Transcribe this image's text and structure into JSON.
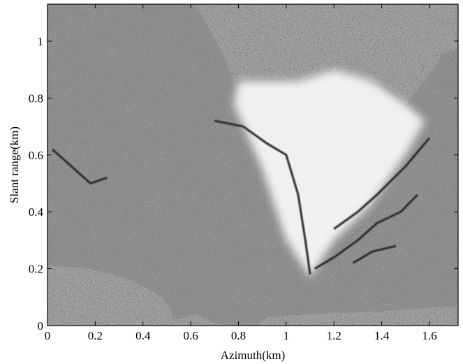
{
  "chart_data": {
    "type": "heatmap",
    "title": "",
    "xlabel": "Azimuth(km)",
    "ylabel": "Slant range(km)",
    "xlim": [
      0,
      1.72
    ],
    "ylim": [
      0,
      1.13
    ],
    "x_ticks": [
      0,
      0.2,
      0.4,
      0.6,
      0.8,
      1,
      1.2,
      1.4,
      1.6
    ],
    "x_tick_labels": [
      "0",
      "0.2",
      "0.4",
      "0.6",
      "0.8",
      "1",
      "1.2",
      "1.4",
      "1.6"
    ],
    "y_ticks": [
      0,
      0.2,
      0.4,
      0.6,
      0.8,
      1
    ],
    "y_tick_labels": [
      "0",
      "0.2",
      "0.4",
      "0.6",
      "0.8",
      "1"
    ],
    "grid": false,
    "colormap": "grayscale",
    "background_color": "#7d7d7d",
    "image_extent_boundary": {
      "top_edge": [
        [
          0,
          1.13
        ],
        [
          0.62,
          1.13
        ],
        [
          0.72,
          0.98
        ],
        [
          0.78,
          0.86
        ],
        [
          0.95,
          0.87
        ],
        [
          1.05,
          0.86
        ],
        [
          1.18,
          0.9
        ],
        [
          1.28,
          0.86
        ],
        [
          1.36,
          0.86
        ],
        [
          1.45,
          0.83
        ],
        [
          1.5,
          0.78
        ],
        [
          1.58,
          0.86
        ],
        [
          1.65,
          0.95
        ],
        [
          1.72,
          0.98
        ]
      ],
      "bottom_edge": [
        [
          0,
          0.21
        ],
        [
          0.18,
          0.2
        ],
        [
          0.35,
          0.16
        ],
        [
          0.48,
          0.1
        ],
        [
          0.54,
          0.02
        ],
        [
          0.62,
          0.04
        ],
        [
          0.7,
          0.01
        ],
        [
          0.78,
          0
        ],
        [
          0.88,
          0
        ],
        [
          0.92,
          0.03
        ],
        [
          1.1,
          0.04
        ],
        [
          1.4,
          0.05
        ],
        [
          1.72,
          0.07
        ]
      ]
    },
    "bright_region": {
      "outline": [
        [
          0.8,
          0.86
        ],
        [
          1.05,
          0.86
        ],
        [
          1.2,
          0.9
        ],
        [
          1.36,
          0.86
        ],
        [
          1.5,
          0.78
        ],
        [
          1.58,
          0.72
        ],
        [
          1.5,
          0.6
        ],
        [
          1.35,
          0.42
        ],
        [
          1.2,
          0.3
        ],
        [
          1.1,
          0.17
        ],
        [
          1.0,
          0.3
        ],
        [
          0.9,
          0.55
        ],
        [
          0.78,
          0.78
        ]
      ]
    },
    "dark_ridges": [
      [
        [
          0.02,
          0.62
        ],
        [
          0.1,
          0.56
        ],
        [
          0.18,
          0.5
        ],
        [
          0.25,
          0.52
        ]
      ],
      [
        [
          0.7,
          0.72
        ],
        [
          0.82,
          0.7
        ],
        [
          0.92,
          0.64
        ],
        [
          1.0,
          0.6
        ],
        [
          1.05,
          0.46
        ],
        [
          1.08,
          0.3
        ],
        [
          1.1,
          0.18
        ]
      ],
      [
        [
          1.12,
          0.2
        ],
        [
          1.2,
          0.24
        ],
        [
          1.3,
          0.3
        ],
        [
          1.38,
          0.36
        ],
        [
          1.48,
          0.4
        ],
        [
          1.55,
          0.46
        ]
      ],
      [
        [
          1.2,
          0.34
        ],
        [
          1.3,
          0.4
        ],
        [
          1.38,
          0.46
        ],
        [
          1.5,
          0.56
        ],
        [
          1.6,
          0.66
        ]
      ],
      [
        [
          1.28,
          0.22
        ],
        [
          1.36,
          0.26
        ],
        [
          1.46,
          0.28
        ]
      ]
    ]
  }
}
